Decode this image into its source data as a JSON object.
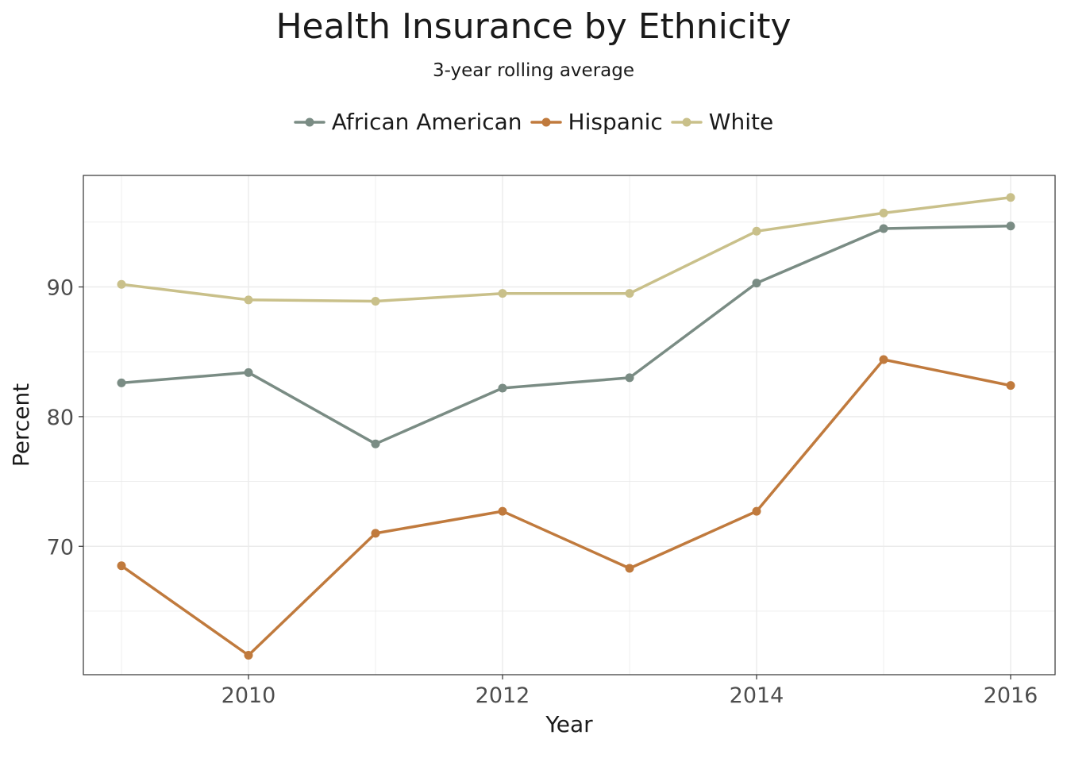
{
  "chart_data": {
    "type": "line",
    "title": "Health Insurance by Ethnicity",
    "subtitle": "3-year rolling average",
    "xlabel": "Year",
    "ylabel": "Percent",
    "x": [
      2009,
      2010,
      2011,
      2012,
      2013,
      2014,
      2015,
      2016
    ],
    "xticks": [
      "2010",
      "2012",
      "2014",
      "2016"
    ],
    "xlim": [
      2008.7,
      2016.35
    ],
    "yticks": [
      "70",
      "80",
      "90"
    ],
    "ylim": [
      60.1,
      98.6
    ],
    "grid": true,
    "legend_position": "top",
    "series": [
      {
        "name": "African American",
        "color": "#7a8c84",
        "values": [
          82.6,
          83.4,
          77.9,
          82.2,
          83.0,
          90.3,
          94.5,
          94.7
        ]
      },
      {
        "name": "Hispanic",
        "color": "#c07a3d",
        "values": [
          68.5,
          61.6,
          71.0,
          72.7,
          68.3,
          72.7,
          84.4,
          82.4
        ]
      },
      {
        "name": "White",
        "color": "#c9c08a",
        "values": [
          90.2,
          89.0,
          88.9,
          89.5,
          89.5,
          94.3,
          95.7,
          96.9
        ]
      }
    ]
  }
}
